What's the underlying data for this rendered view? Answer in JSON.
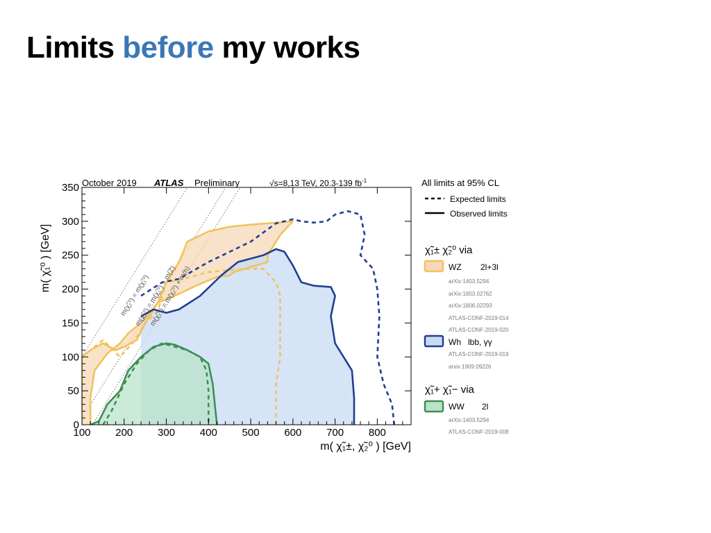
{
  "slide": {
    "title_part1": "Limits ",
    "title_accent": "before",
    "title_part2": " my works",
    "accent_color": "#3b77b6"
  },
  "chart_data": {
    "type": "area",
    "header": {
      "date": "October 2019",
      "experiment": "ATLAS",
      "status": "Preliminary",
      "energy": "√s=8,13 TeV, 20.3-139 fb",
      "energy_sup": "-1"
    },
    "xlabel": "m( χ̃₁±, χ̃₂⁰ ) [GeV]",
    "ylabel": "m( χ̃₁⁰ ) [GeV]",
    "xlim": [
      100,
      880
    ],
    "ylim": [
      0,
      350
    ],
    "x_ticks": [
      100,
      200,
      300,
      400,
      500,
      600,
      700,
      800
    ],
    "y_ticks": [
      0,
      50,
      100,
      150,
      200,
      250,
      300,
      350
    ],
    "kinematic_lines": [
      {
        "label": "m(χ̃₂⁰) = m(χ̃₁⁰)",
        "offset": 0
      },
      {
        "label": "m(χ̃₂⁰) = m(χ̃₁⁰) + m(Z)",
        "offset": 91
      },
      {
        "label": "m(χ̃₂⁰) = m(χ̃₁⁰) + m(h)",
        "offset": 125
      }
    ],
    "legend": {
      "cl_note": "All limits at 95% CL",
      "expected_label": "Expected limits",
      "observed_label": "Observed limits",
      "group1_title": "χ̃₁± χ̃₂⁰  via",
      "group2_title": "χ̃₁+ χ̃₁−  via",
      "entries": [
        {
          "process": "WZ",
          "channel": "2l+3l",
          "refs": [
            "arXiv:1403.5294",
            "arXiv:1803.02762",
            "arXiv:1806.02293",
            "ATLAS-CONF-2019-014",
            "ATLAS-CONF-2019-020"
          ]
        },
        {
          "process": "Wh",
          "channel": "lbb, γγ",
          "refs": [
            "ATLAS-CONF-2019-019",
            "arxiv:1909.09226"
          ]
        },
        {
          "process": "WW",
          "channel": "2l",
          "refs": [
            "arXiv:1403.5294",
            "ATLAS-CONF-2019-008"
          ]
        }
      ]
    },
    "series": [
      {
        "color": "#f2c25a",
        "fill": "#f6d9b8",
        "observed": [
          [
            100,
            0
          ],
          [
            100,
            100
          ],
          [
            120,
            110
          ],
          [
            150,
            120
          ],
          [
            180,
            110
          ],
          [
            200,
            115
          ],
          [
            230,
            125
          ],
          [
            250,
            150
          ],
          [
            280,
            180
          ],
          [
            300,
            210
          ],
          [
            330,
            240
          ],
          [
            350,
            270
          ],
          [
            400,
            285
          ],
          [
            450,
            292
          ],
          [
            500,
            295
          ],
          [
            600,
            300
          ],
          [
            570,
            280
          ],
          [
            540,
            250
          ],
          [
            540,
            240
          ],
          [
            460,
            225
          ],
          [
            450,
            220
          ],
          [
            420,
            218
          ],
          [
            370,
            205
          ],
          [
            320,
            190
          ],
          [
            280,
            180
          ],
          [
            240,
            150
          ],
          [
            210,
            135
          ],
          [
            190,
            120
          ],
          [
            160,
            105
          ],
          [
            130,
            80
          ],
          [
            120,
            40
          ],
          [
            120,
            0
          ]
        ],
        "expected": [
          [
            100,
            100
          ],
          [
            150,
            125
          ],
          [
            190,
            100
          ],
          [
            220,
            120
          ],
          [
            250,
            150
          ],
          [
            280,
            168
          ],
          [
            300,
            210
          ],
          [
            340,
            215
          ],
          [
            400,
            225
          ],
          [
            450,
            228
          ],
          [
            500,
            230
          ],
          [
            530,
            230
          ],
          [
            560,
            210
          ],
          [
            570,
            190
          ],
          [
            570,
            150
          ],
          [
            570,
            100
          ],
          [
            560,
            60
          ],
          [
            560,
            0
          ]
        ]
      },
      {
        "color": "#1f3f8f",
        "fill": "#c8dbf4",
        "observed": [
          [
            240,
            160
          ],
          [
            270,
            170
          ],
          [
            300,
            165
          ],
          [
            330,
            170
          ],
          [
            380,
            190
          ],
          [
            430,
            220
          ],
          [
            470,
            240
          ],
          [
            500,
            245
          ],
          [
            530,
            250
          ],
          [
            560,
            259
          ],
          [
            580,
            255
          ],
          [
            600,
            235
          ],
          [
            620,
            210
          ],
          [
            650,
            205
          ],
          [
            690,
            203
          ],
          [
            700,
            190
          ],
          [
            690,
            160
          ],
          [
            700,
            120
          ],
          [
            740,
            80
          ],
          [
            745,
            40
          ],
          [
            745,
            0
          ],
          [
            0,
            0
          ]
        ],
        "expected": [
          [
            240,
            190
          ],
          [
            290,
            210
          ],
          [
            330,
            215
          ],
          [
            400,
            240
          ],
          [
            500,
            270
          ],
          [
            560,
            297
          ],
          [
            600,
            303
          ],
          [
            620,
            300
          ],
          [
            650,
            298
          ],
          [
            680,
            300
          ],
          [
            700,
            310
          ],
          [
            730,
            315
          ],
          [
            760,
            310
          ],
          [
            770,
            280
          ],
          [
            760,
            250
          ],
          [
            790,
            230
          ],
          [
            800,
            200
          ],
          [
            805,
            160
          ],
          [
            800,
            100
          ],
          [
            815,
            60
          ],
          [
            835,
            30
          ],
          [
            840,
            0
          ]
        ]
      },
      {
        "color": "#3e8e55",
        "fill": "#b9e3cb",
        "observed": [
          [
            120,
            0
          ],
          [
            140,
            5
          ],
          [
            160,
            30
          ],
          [
            190,
            50
          ],
          [
            210,
            80
          ],
          [
            240,
            100
          ],
          [
            270,
            115
          ],
          [
            300,
            120
          ],
          [
            320,
            118
          ],
          [
            350,
            110
          ],
          [
            380,
            100
          ],
          [
            400,
            90
          ],
          [
            410,
            60
          ],
          [
            415,
            30
          ],
          [
            420,
            0
          ]
        ],
        "expected": [
          [
            150,
            0
          ],
          [
            170,
            20
          ],
          [
            200,
            60
          ],
          [
            230,
            90
          ],
          [
            260,
            110
          ],
          [
            290,
            120
          ],
          [
            320,
            115
          ],
          [
            350,
            110
          ],
          [
            380,
            100
          ],
          [
            395,
            80
          ],
          [
            400,
            50
          ],
          [
            400,
            0
          ]
        ]
      }
    ]
  }
}
